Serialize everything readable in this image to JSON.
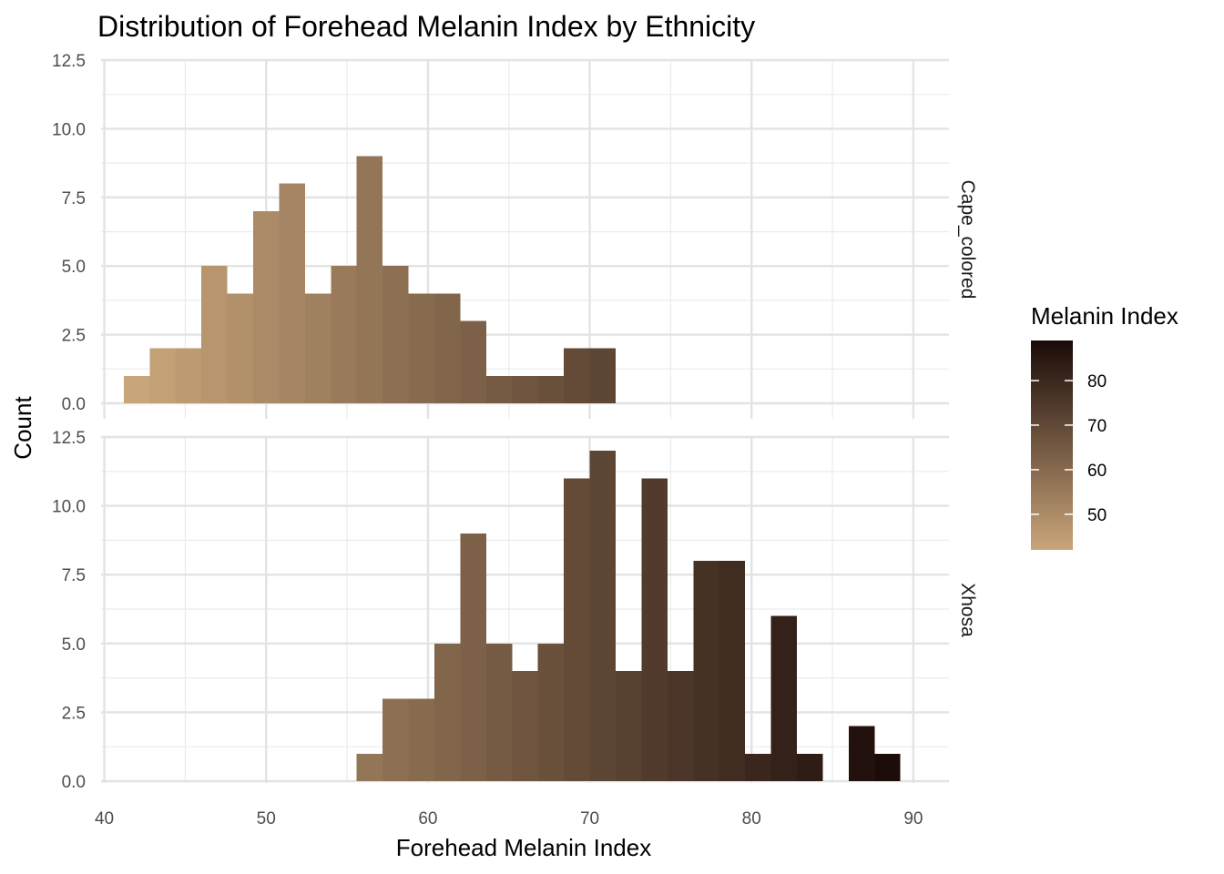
{
  "chart_data": {
    "type": "bar",
    "title": "Distribution of Forehead Melanin Index by Ethnicity",
    "xlabel": "Forehead Melanin Index",
    "ylabel": "Count",
    "xlim": [
      39.8,
      92.2
    ],
    "ylim": [
      0,
      12.5
    ],
    "x_ticks": [
      40,
      50,
      60,
      70,
      80,
      90
    ],
    "y_ticks": [
      0,
      2.5,
      5,
      7.5,
      10,
      12.5
    ],
    "y_tick_labels": [
      "0.0",
      "2.5",
      "5.0",
      "7.5",
      "10.0",
      "12.5"
    ],
    "grid": true,
    "bin_width": 1.6,
    "facets": [
      {
        "name": "Cape_colored",
        "bins": [
          {
            "x0": 41.2,
            "x1": 42.8,
            "count": 1
          },
          {
            "x0": 42.8,
            "x1": 44.4,
            "count": 2
          },
          {
            "x0": 44.4,
            "x1": 46.0,
            "count": 2
          },
          {
            "x0": 46.0,
            "x1": 47.6,
            "count": 5
          },
          {
            "x0": 47.6,
            "x1": 49.2,
            "count": 4
          },
          {
            "x0": 49.2,
            "x1": 50.8,
            "count": 7
          },
          {
            "x0": 50.8,
            "x1": 52.4,
            "count": 8
          },
          {
            "x0": 52.4,
            "x1": 54.0,
            "count": 4
          },
          {
            "x0": 54.0,
            "x1": 55.6,
            "count": 5
          },
          {
            "x0": 55.6,
            "x1": 57.2,
            "count": 9
          },
          {
            "x0": 57.2,
            "x1": 58.8,
            "count": 5
          },
          {
            "x0": 58.8,
            "x1": 60.4,
            "count": 4
          },
          {
            "x0": 60.4,
            "x1": 62.0,
            "count": 4
          },
          {
            "x0": 62.0,
            "x1": 63.6,
            "count": 3
          },
          {
            "x0": 63.6,
            "x1": 65.2,
            "count": 1
          },
          {
            "x0": 65.2,
            "x1": 66.8,
            "count": 1
          },
          {
            "x0": 66.8,
            "x1": 68.4,
            "count": 1
          },
          {
            "x0": 68.4,
            "x1": 70.0,
            "count": 2
          },
          {
            "x0": 70.0,
            "x1": 71.6,
            "count": 2
          }
        ]
      },
      {
        "name": "Xhosa",
        "bins": [
          {
            "x0": 55.6,
            "x1": 57.2,
            "count": 1
          },
          {
            "x0": 57.2,
            "x1": 58.8,
            "count": 3
          },
          {
            "x0": 58.8,
            "x1": 60.4,
            "count": 3
          },
          {
            "x0": 60.4,
            "x1": 62.0,
            "count": 5
          },
          {
            "x0": 62.0,
            "x1": 63.6,
            "count": 9
          },
          {
            "x0": 63.6,
            "x1": 65.2,
            "count": 5
          },
          {
            "x0": 65.2,
            "x1": 66.8,
            "count": 4
          },
          {
            "x0": 66.8,
            "x1": 68.4,
            "count": 5
          },
          {
            "x0": 68.4,
            "x1": 70.0,
            "count": 11
          },
          {
            "x0": 70.0,
            "x1": 71.6,
            "count": 12
          },
          {
            "x0": 71.6,
            "x1": 73.2,
            "count": 4
          },
          {
            "x0": 73.2,
            "x1": 74.8,
            "count": 11
          },
          {
            "x0": 74.8,
            "x1": 76.4,
            "count": 4
          },
          {
            "x0": 76.4,
            "x1": 78.0,
            "count": 8
          },
          {
            "x0": 78.0,
            "x1": 79.6,
            "count": 8
          },
          {
            "x0": 79.6,
            "x1": 81.2,
            "count": 1
          },
          {
            "x0": 81.2,
            "x1": 82.8,
            "count": 6
          },
          {
            "x0": 82.8,
            "x1": 84.4,
            "count": 1
          },
          {
            "x0": 86.0,
            "x1": 87.6,
            "count": 2
          },
          {
            "x0": 87.6,
            "x1": 89.2,
            "count": 1
          }
        ]
      }
    ],
    "legend": {
      "title": "Melanin Index",
      "position": "right",
      "ticks": [
        50,
        60,
        70,
        80
      ],
      "range": [
        42,
        89
      ],
      "colors": [
        "#C9A57A",
        "#1A0A08"
      ]
    }
  }
}
